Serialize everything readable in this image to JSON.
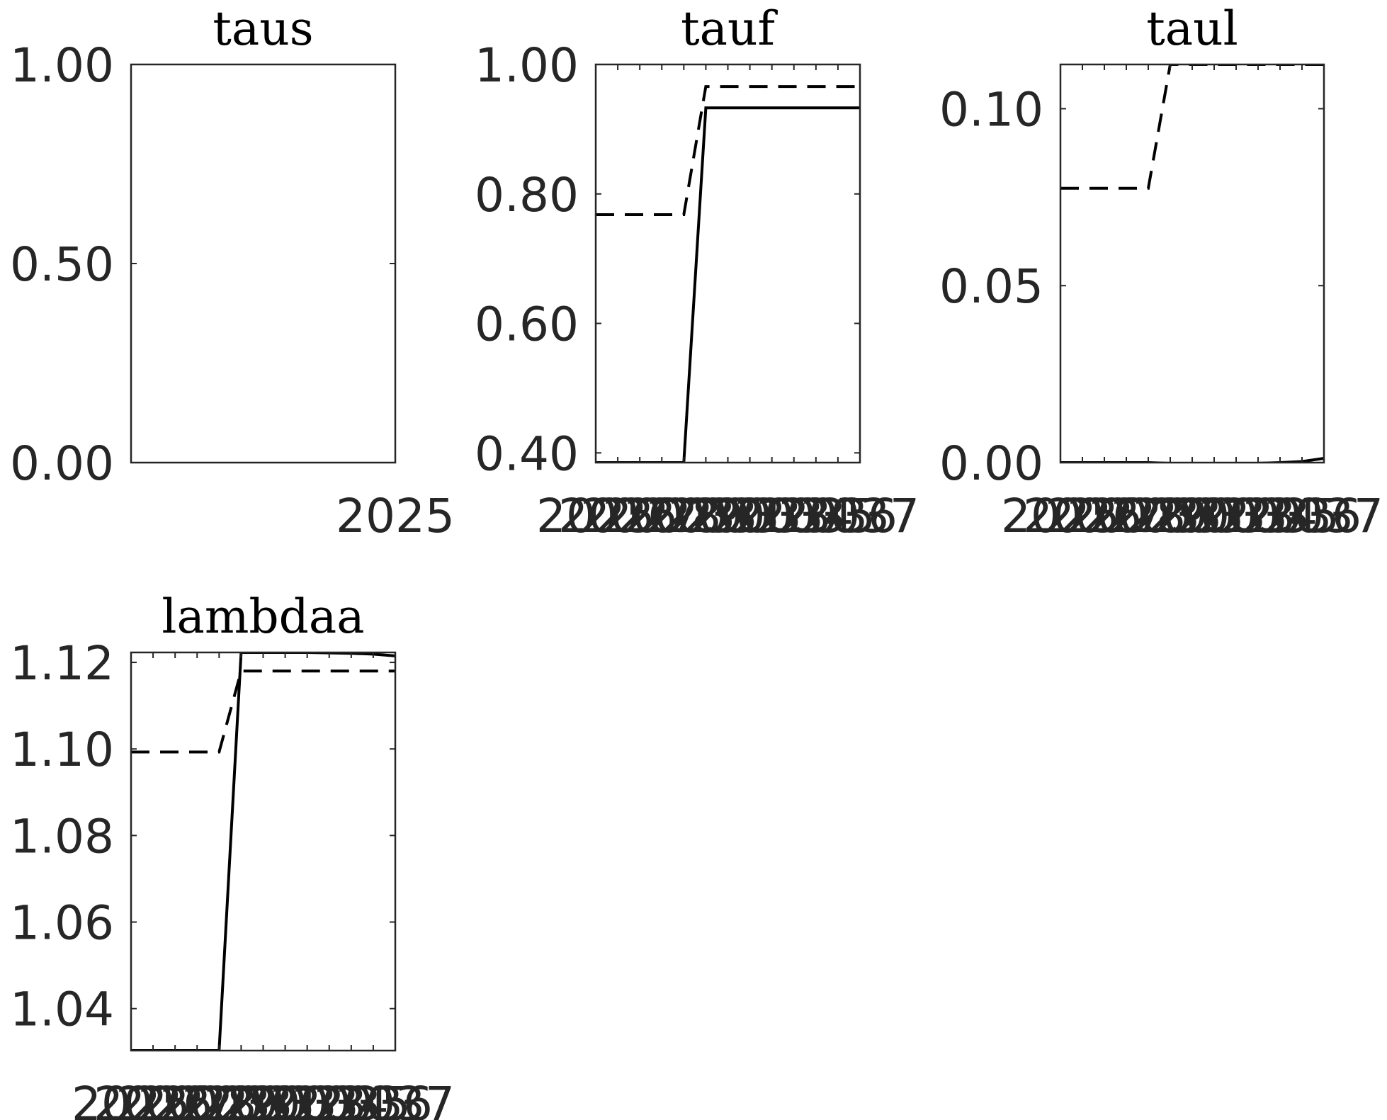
{
  "chart_data": [
    {
      "type": "line",
      "title": "taus",
      "xlabel": "",
      "ylabel": "",
      "xlim": [
        2024,
        2025
      ],
      "ylim": [
        0,
        1
      ],
      "x_ticks": [
        2025
      ],
      "x_tick_labels": [
        "2025"
      ],
      "y_ticks": [
        0,
        0.5,
        1
      ],
      "y_tick_labels": [
        "0.00",
        "0.50",
        "1.00"
      ],
      "series": []
    },
    {
      "type": "line",
      "title": "tauf",
      "xlabel": "",
      "ylabel": "",
      "xlim": [
        2025,
        2037
      ],
      "ylim": [
        0.385,
        1.0
      ],
      "x_ticks": [
        2025,
        2026,
        2027,
        2028,
        2029,
        2030,
        2031,
        2032,
        2033,
        2034,
        2035,
        2036,
        2037
      ],
      "x_tick_labels": [
        "2025",
        "2026",
        "2027",
        "2028",
        "2029",
        "2030",
        "2031",
        "2032",
        "2033",
        "2034",
        "2035",
        "2036",
        "2037"
      ],
      "y_ticks": [
        0.4,
        0.6,
        0.8,
        1.0
      ],
      "y_tick_labels": [
        "0.40",
        "0.60",
        "0.80",
        "1.00"
      ],
      "series": [
        {
          "name": "solid",
          "style": "solid",
          "x": [
            2025,
            2026,
            2027,
            2028,
            2029,
            2030,
            2031,
            2032,
            2033,
            2034,
            2035,
            2036,
            2037
          ],
          "values": [
            0.385,
            0.385,
            0.385,
            0.385,
            0.385,
            0.933,
            0.933,
            0.933,
            0.933,
            0.933,
            0.933,
            0.933,
            0.933
          ]
        },
        {
          "name": "dashed",
          "style": "dashed",
          "x": [
            2025,
            2026,
            2027,
            2028,
            2029,
            2030,
            2031,
            2032,
            2033,
            2034,
            2035,
            2036,
            2037
          ],
          "values": [
            0.768,
            0.768,
            0.768,
            0.768,
            0.768,
            0.966,
            0.966,
            0.966,
            0.966,
            0.966,
            0.966,
            0.966,
            0.966
          ]
        }
      ]
    },
    {
      "type": "line",
      "title": "taul",
      "xlabel": "",
      "ylabel": "",
      "xlim": [
        2025,
        2037
      ],
      "ylim": [
        0,
        0.1125
      ],
      "x_ticks": [
        2025,
        2026,
        2027,
        2028,
        2029,
        2030,
        2031,
        2032,
        2033,
        2034,
        2035,
        2036,
        2037
      ],
      "x_tick_labels": [
        "2025",
        "2026",
        "2027",
        "2028",
        "2029",
        "2030",
        "2031",
        "2032",
        "2033",
        "2034",
        "2035",
        "2036",
        "2037"
      ],
      "y_ticks": [
        0,
        0.05,
        0.1
      ],
      "y_tick_labels": [
        "0.00",
        "0.05",
        "0.10"
      ],
      "series": [
        {
          "name": "solid",
          "style": "solid",
          "x": [
            2025,
            2026,
            2027,
            2028,
            2029,
            2030,
            2031,
            2032,
            2033,
            2034,
            2035,
            2036,
            2037
          ],
          "values": [
            0.0,
            0.0,
            0.0,
            0.0,
            0.0,
            -0.0002,
            -0.0003,
            -0.0003,
            -0.0003,
            -0.0002,
            0.0,
            0.0003,
            0.0012
          ]
        },
        {
          "name": "dashed",
          "style": "dashed",
          "x": [
            2025,
            2026,
            2027,
            2028,
            2029,
            2030,
            2031,
            2032,
            2033,
            2034,
            2035,
            2036,
            2037
          ],
          "values": [
            0.0775,
            0.0775,
            0.0775,
            0.0775,
            0.0775,
            0.1125,
            0.1125,
            0.1125,
            0.1125,
            0.1125,
            0.1125,
            0.1125,
            0.1125
          ]
        }
      ]
    },
    {
      "type": "line",
      "title": "lambdaa",
      "xlabel": "",
      "ylabel": "",
      "xlim": [
        2025,
        2037
      ],
      "ylim": [
        1.0303,
        1.1223
      ],
      "x_ticks": [
        2025,
        2026,
        2027,
        2028,
        2029,
        2030,
        2031,
        2032,
        2033,
        2034,
        2035,
        2036,
        2037
      ],
      "x_tick_labels": [
        "2025",
        "2026",
        "2027",
        "2028",
        "2029",
        "2030",
        "2031",
        "2032",
        "2033",
        "2034",
        "2035",
        "2036",
        "2037"
      ],
      "y_ticks": [
        1.04,
        1.06,
        1.08,
        1.1,
        1.12
      ],
      "y_tick_labels": [
        "1.04",
        "1.06",
        "1.08",
        "1.10",
        "1.12"
      ],
      "series": [
        {
          "name": "solid",
          "style": "solid",
          "x": [
            2025,
            2026,
            2027,
            2028,
            2029,
            2030,
            2031,
            2032,
            2033,
            2034,
            2035,
            2036,
            2037
          ],
          "values": [
            1.0303,
            1.0303,
            1.0303,
            1.0303,
            1.0303,
            1.1223,
            1.1223,
            1.1223,
            1.1223,
            1.1222,
            1.1221,
            1.1219,
            1.1215
          ]
        },
        {
          "name": "dashed",
          "style": "dashed",
          "x": [
            2025,
            2026,
            2027,
            2028,
            2029,
            2030,
            2031,
            2032,
            2033,
            2034,
            2035,
            2036,
            2037
          ],
          "values": [
            1.0993,
            1.0993,
            1.0993,
            1.0993,
            1.0993,
            1.118,
            1.118,
            1.118,
            1.118,
            1.118,
            1.118,
            1.118,
            1.118
          ]
        }
      ]
    }
  ]
}
